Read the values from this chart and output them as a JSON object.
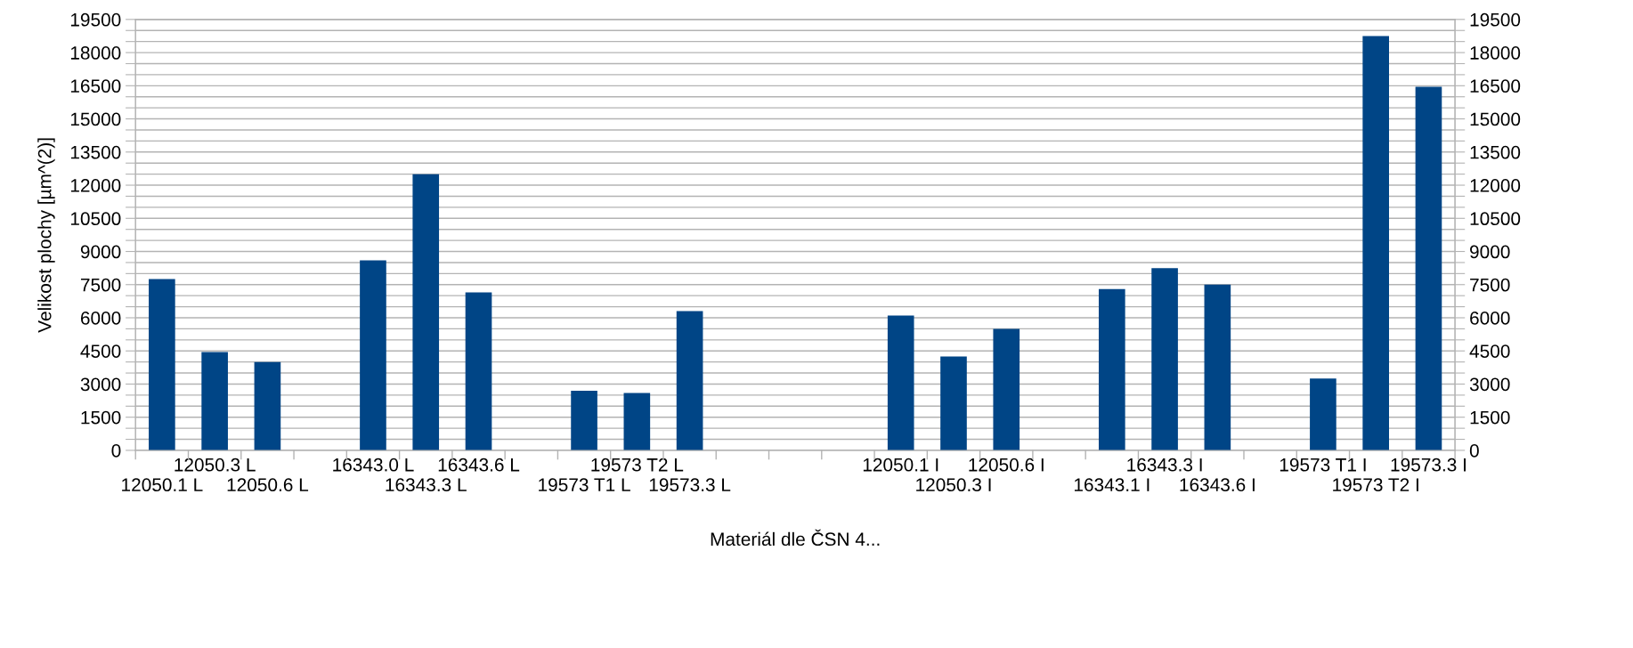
{
  "chart_data": {
    "type": "bar",
    "xlabel": "Materiál dle ČSN 4...",
    "ylabel": "Velikost plochy [µm^(2)]",
    "categories": [
      "12050.1 L",
      "12050.3 L",
      "12050.6 L",
      null,
      "16343.0 L",
      "16343.3 L",
      "16343.6 L",
      null,
      "19573 T1 L",
      "19573 T2 L",
      "19573.3 L",
      null,
      null,
      null,
      "12050.1 I",
      "12050.3 I",
      "12050.6 I",
      null,
      "16343.1 I",
      "16343.3 I",
      "16343.6 I",
      null,
      "19573 T1 I",
      "19573 T2 I",
      "19573.3 I"
    ],
    "values": [
      7750,
      4450,
      4000,
      null,
      8600,
      12500,
      7150,
      null,
      2700,
      2600,
      6300,
      null,
      null,
      null,
      6100,
      4250,
      5500,
      null,
      7300,
      8250,
      7500,
      null,
      3250,
      18750,
      16450
    ],
    "color": "#004586",
    "ylim": [
      0,
      19500
    ],
    "yticks": [
      0,
      {
        "value": 500,
        "label": null
      },
      {
        "value": 1000,
        "label": null
      },
      1500,
      {
        "value": 2000,
        "label": null
      },
      {
        "value": 2500,
        "label": null
      },
      3000,
      {
        "value": 3500,
        "label": null
      },
      {
        "value": 4000,
        "label": null
      },
      4500,
      {
        "value": 5000,
        "label": null
      },
      {
        "value": 5500,
        "label": null
      },
      6000,
      {
        "value": 6500,
        "label": null
      },
      {
        "value": 7000,
        "label": null
      },
      7500,
      {
        "value": 8000,
        "label": null
      },
      {
        "value": 8500,
        "label": null
      },
      9000,
      {
        "value": 9500,
        "label": null
      },
      {
        "value": 10000,
        "label": null
      },
      10500,
      {
        "value": 11000,
        "label": null
      },
      {
        "value": 11500,
        "label": null
      },
      12000,
      {
        "value": 12500,
        "label": null
      },
      {
        "value": 13000,
        "label": null
      },
      13500,
      {
        "value": 14000,
        "label": null
      },
      {
        "value": 14500,
        "label": null
      },
      15000,
      {
        "value": 15500,
        "label": null
      },
      {
        "value": 16000,
        "label": null
      },
      16500,
      {
        "value": 17000,
        "label": null
      },
      {
        "value": 17500,
        "label": null
      },
      18000,
      {
        "value": 18500,
        "label": null
      },
      {
        "value": 19000,
        "label": null
      },
      19500
    ],
    "y2lim": [
      0,
      19500
    ],
    "y2ticks": [
      0,
      {
        "value": 500,
        "label": null
      },
      {
        "value": 1000,
        "label": null
      },
      1500,
      {
        "value": 2000,
        "label": null
      },
      {
        "value": 2500,
        "label": null
      },
      3000,
      {
        "value": 3500,
        "label": null
      },
      {
        "value": 4000,
        "label": null
      },
      4500,
      {
        "value": 5000,
        "label": null
      },
      {
        "value": 5500,
        "label": null
      },
      6000,
      {
        "value": 6500,
        "label": null
      },
      {
        "value": 7000,
        "label": null
      },
      7500,
      {
        "value": 8000,
        "label": null
      },
      {
        "value": 8500,
        "label": null
      },
      9000,
      {
        "value": 9500,
        "label": null
      },
      {
        "value": 10000,
        "label": null
      },
      10500,
      {
        "value": 11000,
        "label": null
      },
      {
        "value": 11500,
        "label": null
      },
      12000,
      {
        "value": 12500,
        "label": null
      },
      {
        "value": 13000,
        "label": null
      },
      13500,
      {
        "value": 14000,
        "label": null
      },
      {
        "value": 14500,
        "label": null
      },
      15000,
      {
        "value": 15500,
        "label": null
      },
      {
        "value": 16000,
        "label": null
      },
      16500,
      {
        "value": 17000,
        "label": null
      },
      {
        "value": 17500,
        "label": null
      },
      18000,
      {
        "value": 18500,
        "label": null
      },
      {
        "value": 19000,
        "label": null
      },
      19500
    ],
    "grid": "y",
    "legend": false
  }
}
